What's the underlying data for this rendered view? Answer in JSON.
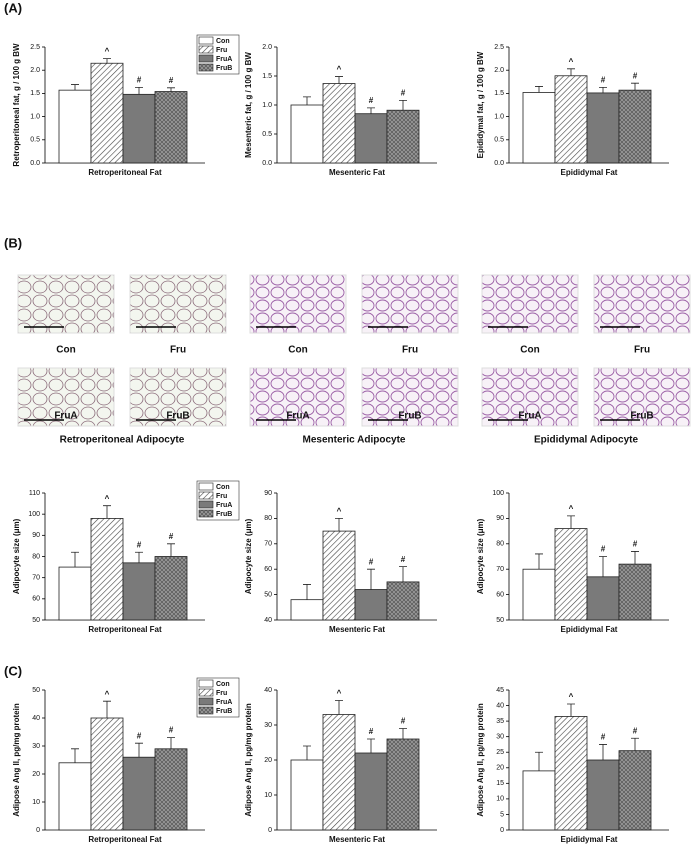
{
  "panel_labels": [
    "(A)",
    "(B)",
    "(C)"
  ],
  "micrograph_groups": [
    {
      "title": "Retroperitoneal Adipocyte",
      "labels": [
        "Con",
        "Fru",
        "FruA",
        "FruB"
      ]
    },
    {
      "title": "Mesenteric Adipocyte",
      "labels": [
        "Con",
        "Fru",
        "FruA",
        "FruB"
      ]
    },
    {
      "title": "Epididymal Adipocyte",
      "labels": [
        "Con",
        "Fru",
        "FruA",
        "FruB"
      ]
    }
  ],
  "chart_data": [
    {
      "type": "bar",
      "ylabel": "Retroperitoneal fat, g / 100 g BW",
      "xlabel": "Retroperitoneal Fat",
      "values": [
        1.57,
        2.15,
        1.48,
        1.54
      ],
      "errors": [
        0.12,
        0.1,
        0.15,
        0.08
      ],
      "annotations": [
        null,
        "^",
        "#",
        "#"
      ],
      "fills": [
        "white",
        "hatch",
        "#7a7a7a",
        "crosshatch"
      ],
      "series_names": [
        "Con",
        "Fru",
        "FruA",
        "FruB"
      ],
      "legend": "top-right",
      "ylim": [
        0,
        2.5
      ],
      "yticks": [
        {
          "value": 0,
          "label": "0.0"
        },
        0.5,
        {
          "value": 1,
          "label": "1.0"
        },
        1.5,
        {
          "value": 2,
          "label": "2.0"
        },
        2.5
      ]
    },
    {
      "type": "bar",
      "ylabel": "Mesenteric fat, g / 100 g BW",
      "xlabel": "Mesenteric Fat",
      "values": [
        1.0,
        1.37,
        0.85,
        0.91
      ],
      "errors": [
        0.14,
        0.12,
        0.1,
        0.17
      ],
      "annotations": [
        null,
        "^",
        "#",
        "#"
      ],
      "fills": [
        "white",
        "hatch",
        "#7a7a7a",
        "crosshatch"
      ],
      "ylim": [
        0,
        2.0
      ],
      "yticks": [
        {
          "value": 0,
          "label": "0.0"
        },
        0.5,
        {
          "value": 1,
          "label": "1.0"
        },
        1.5,
        {
          "value": 2,
          "label": "2.0"
        }
      ]
    },
    {
      "type": "bar",
      "ylabel": "Epididymal fat, g / 100 g BW",
      "xlabel": "Epididymal Fat",
      "values": [
        1.52,
        1.88,
        1.51,
        1.57
      ],
      "errors": [
        0.13,
        0.15,
        0.12,
        0.15
      ],
      "annotations": [
        null,
        "^",
        "#",
        "#"
      ],
      "fills": [
        "white",
        "hatch",
        "#7a7a7a",
        "crosshatch"
      ],
      "ylim": [
        0,
        2.5
      ],
      "yticks": [
        {
          "value": 0,
          "label": "0.0"
        },
        0.5,
        {
          "value": 1,
          "label": "1.0"
        },
        1.5,
        {
          "value": 2,
          "label": "2.0"
        },
        2.5
      ]
    },
    {
      "type": "bar",
      "ylabel": "Adipocyte size (μm)",
      "xlabel": "Retroperitoneal Fat",
      "values": [
        75,
        98,
        77,
        80
      ],
      "errors": [
        7,
        6,
        5,
        6
      ],
      "annotations": [
        null,
        "^",
        "#",
        "#"
      ],
      "fills": [
        "white",
        "hatch",
        "#7a7a7a",
        "crosshatch"
      ],
      "series_names": [
        "Con",
        "Fru",
        "FruA",
        "FruB"
      ],
      "legend": "top-right",
      "ylim": [
        50,
        110
      ],
      "yticks": [
        50,
        60,
        70,
        80,
        90,
        100,
        110
      ]
    },
    {
      "type": "bar",
      "ylabel": "Adipocyte size (μm)",
      "xlabel": "Mesenteric Fat",
      "values": [
        48,
        75,
        52,
        55
      ],
      "errors": [
        6,
        5,
        8,
        6
      ],
      "annotations": [
        null,
        "^",
        "#",
        "#"
      ],
      "fills": [
        "white",
        "hatch",
        "#7a7a7a",
        "crosshatch"
      ],
      "ylim": [
        40,
        90
      ],
      "yticks": [
        40,
        50,
        60,
        70,
        80,
        90
      ]
    },
    {
      "type": "bar",
      "ylabel": "Adipocyte size (μm)",
      "xlabel": "Epididymal Fat",
      "values": [
        70,
        86,
        67,
        72
      ],
      "errors": [
        6,
        5,
        8,
        5
      ],
      "annotations": [
        null,
        "^",
        "#",
        "#"
      ],
      "fills": [
        "white",
        "hatch",
        "#7a7a7a",
        "crosshatch"
      ],
      "ylim": [
        50,
        100
      ],
      "yticks": [
        50,
        60,
        70,
        80,
        90,
        100
      ]
    },
    {
      "type": "bar",
      "ylabel": "Adipose Ang II, pg/mg protein",
      "xlabel": "Retroperitoneal Fat",
      "values": [
        24,
        40,
        26,
        29
      ],
      "errors": [
        5,
        6,
        5,
        4
      ],
      "annotations": [
        null,
        "^",
        "#",
        "#"
      ],
      "fills": [
        "white",
        "hatch",
        "#7a7a7a",
        "crosshatch"
      ],
      "series_names": [
        "Con",
        "Fru",
        "FruA",
        "FruB"
      ],
      "legend": "top-right",
      "ylim": [
        0,
        50
      ],
      "yticks": [
        0,
        10,
        20,
        30,
        40,
        50
      ]
    },
    {
      "type": "bar",
      "ylabel": "Adipose Ang II, pg/mg protein",
      "xlabel": "Mesenteric Fat",
      "values": [
        20,
        33,
        22,
        26
      ],
      "errors": [
        4,
        4,
        4,
        3
      ],
      "annotations": [
        null,
        "^",
        "#",
        "#"
      ],
      "fills": [
        "white",
        "hatch",
        "#7a7a7a",
        "crosshatch"
      ],
      "ylim": [
        0,
        40
      ],
      "yticks": [
        0,
        10,
        20,
        30,
        40
      ]
    },
    {
      "type": "bar",
      "ylabel": "Adipose Ang II, pg/mg protein",
      "xlabel": "Epididymal Fat",
      "values": [
        19,
        36.5,
        22.5,
        25.5
      ],
      "errors": [
        6,
        4,
        5,
        4
      ],
      "annotations": [
        null,
        "^",
        "#",
        "#"
      ],
      "fills": [
        "white",
        "hatch",
        "#7a7a7a",
        "crosshatch"
      ],
      "ylim": [
        0,
        45
      ],
      "yticks": [
        0,
        5,
        10,
        15,
        20,
        25,
        30,
        35,
        40,
        45
      ]
    }
  ]
}
